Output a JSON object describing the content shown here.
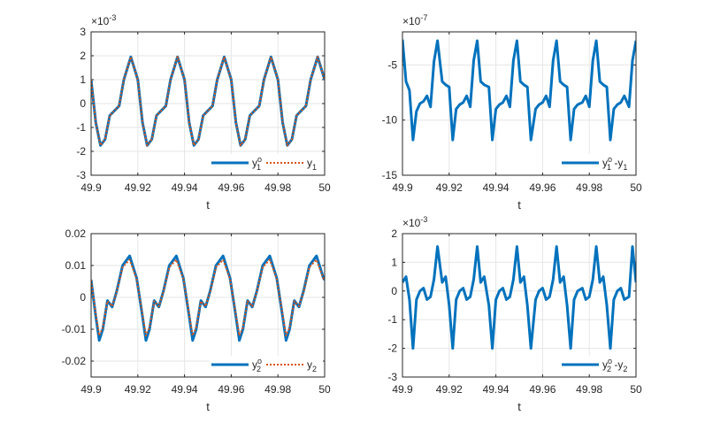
{
  "chart_data": [
    {
      "type": "line",
      "xlabel": "t",
      "exponent_label": "×10",
      "exponent_power": "-3",
      "xlim": [
        49.9,
        50
      ],
      "ylim": [
        -3,
        3
      ],
      "x_ticks": [
        "49.9",
        "49.92",
        "49.94",
        "49.96",
        "49.98",
        "50"
      ],
      "y_ticks": [
        "3",
        "2",
        "1",
        "0",
        "-1",
        "-2",
        "-3"
      ],
      "y_tick_values": [
        3,
        2,
        1,
        0,
        -1,
        -2,
        -3
      ],
      "grid": true,
      "legend_position": "bottom-right",
      "legend": [
        {
          "base": "y",
          "sup": "o",
          "sub": "1",
          "suffix": "",
          "color": "#0072BD",
          "dashed": false
        },
        {
          "base": "y",
          "sup": "",
          "sub": "1",
          "suffix": "",
          "color": "#D95319",
          "dashed": true
        }
      ],
      "series": [
        {
          "color": "#0072BD",
          "dashed": false,
          "x": [
            49.9,
            49.902,
            49.904,
            49.906,
            49.908,
            49.91,
            49.912,
            49.914,
            49.917,
            49.92,
            49.922,
            49.924,
            49.926,
            49.928,
            49.93,
            49.932,
            49.934,
            49.937,
            49.94,
            49.942,
            49.944,
            49.946,
            49.948,
            49.95,
            49.952,
            49.954,
            49.957,
            49.96,
            49.962,
            49.964,
            49.966,
            49.968,
            49.97,
            49.972,
            49.974,
            49.977,
            49.98,
            49.982,
            49.984,
            49.986,
            49.988,
            49.99,
            49.992,
            49.994,
            49.997,
            50.0
          ],
          "values": [
            1.0,
            -0.8,
            -1.75,
            -1.5,
            -0.5,
            -0.3,
            -0.1,
            1.0,
            1.95,
            1.0,
            -0.8,
            -1.75,
            -1.5,
            -0.5,
            -0.3,
            -0.1,
            1.0,
            1.95,
            1.0,
            -0.8,
            -1.75,
            -1.5,
            -0.5,
            -0.3,
            -0.1,
            1.0,
            1.95,
            1.0,
            -0.8,
            -1.75,
            -1.5,
            -0.5,
            -0.3,
            -0.1,
            1.0,
            1.95,
            1.0,
            -0.8,
            -1.75,
            -1.5,
            -0.5,
            -0.3,
            -0.1,
            1.0,
            1.95,
            1.0
          ]
        },
        {
          "color": "#D95319",
          "dashed": true,
          "x": [
            49.9,
            49.902,
            49.904,
            49.906,
            49.908,
            49.91,
            49.912,
            49.914,
            49.917,
            49.92,
            49.922,
            49.924,
            49.926,
            49.928,
            49.93,
            49.932,
            49.934,
            49.937,
            49.94,
            49.942,
            49.944,
            49.946,
            49.948,
            49.95,
            49.952,
            49.954,
            49.957,
            49.96,
            49.962,
            49.964,
            49.966,
            49.968,
            49.97,
            49.972,
            49.974,
            49.977,
            49.98,
            49.982,
            49.984,
            49.986,
            49.988,
            49.99,
            49.992,
            49.994,
            49.997,
            50.0
          ],
          "values": [
            1.0,
            -0.8,
            -1.75,
            -1.5,
            -0.5,
            -0.3,
            -0.1,
            1.0,
            1.95,
            1.0,
            -0.8,
            -1.75,
            -1.5,
            -0.5,
            -0.3,
            -0.1,
            1.0,
            1.95,
            1.0,
            -0.8,
            -1.75,
            -1.5,
            -0.5,
            -0.3,
            -0.1,
            1.0,
            1.95,
            1.0,
            -0.8,
            -1.75,
            -1.5,
            -0.5,
            -0.3,
            -0.1,
            1.0,
            1.95,
            1.0,
            -0.8,
            -1.75,
            -1.5,
            -0.5,
            -0.3,
            -0.1,
            1.0,
            1.95,
            1.0
          ]
        }
      ]
    },
    {
      "type": "line",
      "xlabel": "t",
      "exponent_label": "×10",
      "exponent_power": "-7",
      "xlim": [
        49.9,
        50
      ],
      "ylim": [
        -15,
        -2
      ],
      "x_ticks": [
        "49.9",
        "49.92",
        "49.94",
        "49.96",
        "49.98",
        "50"
      ],
      "y_ticks": [
        "-5",
        "-10",
        "-15"
      ],
      "y_tick_values": [
        -5,
        -10,
        -15
      ],
      "grid": true,
      "legend_position": "bottom-right",
      "legend": [
        {
          "base": "y",
          "sup": "o",
          "sub": "1",
          "suffix": " -y",
          "suffix_sub": "1",
          "color": "#0072BD",
          "dashed": false
        }
      ],
      "series": [
        {
          "color": "#0072BD",
          "dashed": false,
          "x": [
            49.9,
            49.9015,
            49.903,
            49.9045,
            49.906,
            49.9075,
            49.909,
            49.9105,
            49.912,
            49.9135,
            49.915,
            49.917,
            49.9185,
            49.92,
            49.9215,
            49.923,
            49.9245,
            49.926,
            49.9275,
            49.929,
            49.9305,
            49.932,
            49.9335,
            49.935,
            49.937,
            49.9385,
            49.94,
            49.9415,
            49.943,
            49.9445,
            49.946,
            49.9475,
            49.949,
            49.9505,
            49.952,
            49.9535,
            49.955,
            49.957,
            49.9585,
            49.96,
            49.9615,
            49.963,
            49.9645,
            49.966,
            49.9675,
            49.969,
            49.9705,
            49.972,
            49.9735,
            49.975,
            49.977,
            49.9785,
            49.98,
            49.9815,
            49.983,
            49.9845,
            49.986,
            49.9875,
            49.989,
            49.9905,
            49.992,
            49.9935,
            49.995,
            49.997,
            49.9985,
            50.0
          ],
          "values": [
            -2.7,
            -6.5,
            -7.3,
            -11.8,
            -9.2,
            -8.5,
            -8.3,
            -7.8,
            -8.8,
            -4.7,
            -2.8,
            -6.5,
            -6.8,
            -7.0,
            -11.8,
            -9.0,
            -8.6,
            -8.4,
            -7.8,
            -8.8,
            -4.6,
            -2.8,
            -6.5,
            -6.8,
            -7.0,
            -11.8,
            -9.0,
            -8.6,
            -8.4,
            -7.8,
            -8.8,
            -4.6,
            -2.8,
            -6.5,
            -6.8,
            -7.0,
            -11.8,
            -9.0,
            -8.6,
            -8.4,
            -7.8,
            -8.8,
            -4.6,
            -2.8,
            -6.5,
            -6.8,
            -7.0,
            -11.8,
            -9.0,
            -8.6,
            -8.4,
            -7.8,
            -8.8,
            -4.6,
            -2.8,
            -6.5,
            -6.8,
            -7.0,
            -11.8,
            -9.0,
            -8.6,
            -8.4,
            -7.8,
            -8.8,
            -4.6,
            -2.8
          ]
        }
      ]
    },
    {
      "type": "line",
      "xlabel": "t",
      "exponent_label": "",
      "exponent_power": "",
      "xlim": [
        49.9,
        50
      ],
      "ylim": [
        -0.025,
        0.02
      ],
      "x_ticks": [
        "49.9",
        "49.92",
        "49.94",
        "49.96",
        "49.98",
        "50"
      ],
      "y_ticks": [
        "0.02",
        "0.01",
        "0",
        "-0.01",
        "-0.02"
      ],
      "y_tick_values": [
        0.02,
        0.01,
        0,
        -0.01,
        -0.02
      ],
      "grid": true,
      "legend_position": "bottom-right",
      "legend": [
        {
          "base": "y",
          "sup": "o",
          "sub": "2",
          "suffix": "",
          "color": "#0072BD",
          "dashed": false
        },
        {
          "base": "y",
          "sup": "",
          "sub": "2",
          "suffix": "",
          "color": "#D95319",
          "dashed": true
        }
      ],
      "series": [
        {
          "color": "#0072BD",
          "dashed": false,
          "x": [
            49.9,
            49.902,
            49.9035,
            49.905,
            49.907,
            49.909,
            49.911,
            49.9135,
            49.9165,
            49.9195,
            49.922,
            49.9235,
            49.925,
            49.927,
            49.929,
            49.931,
            49.9335,
            49.9365,
            49.9395,
            49.942,
            49.9435,
            49.945,
            49.947,
            49.949,
            49.951,
            49.9535,
            49.9565,
            49.9595,
            49.962,
            49.9635,
            49.965,
            49.967,
            49.969,
            49.971,
            49.9735,
            49.9765,
            49.9795,
            49.982,
            49.9835,
            49.985,
            49.987,
            49.989,
            49.991,
            49.9935,
            49.9965,
            49.9995,
            50.0
          ],
          "values": [
            0.0055,
            -0.006,
            -0.0135,
            -0.01,
            -0.001,
            -0.003,
            0.002,
            0.01,
            0.013,
            0.006,
            -0.006,
            -0.0135,
            -0.01,
            -0.001,
            -0.003,
            0.002,
            0.01,
            0.013,
            0.006,
            -0.006,
            -0.0135,
            -0.01,
            -0.001,
            -0.003,
            0.002,
            0.01,
            0.013,
            0.006,
            -0.006,
            -0.0135,
            -0.01,
            -0.001,
            -0.003,
            0.002,
            0.01,
            0.013,
            0.006,
            -0.006,
            -0.0135,
            -0.01,
            -0.001,
            -0.003,
            0.002,
            0.01,
            0.013,
            0.006,
            0.0055
          ]
        },
        {
          "color": "#D95319",
          "dashed": true,
          "x": [
            49.9,
            49.902,
            49.9035,
            49.905,
            49.907,
            49.909,
            49.911,
            49.9135,
            49.9165,
            49.9195,
            49.922,
            49.9235,
            49.925,
            49.927,
            49.929,
            49.931,
            49.9335,
            49.9365,
            49.9395,
            49.942,
            49.9435,
            49.945,
            49.947,
            49.949,
            49.951,
            49.9535,
            49.9565,
            49.9595,
            49.962,
            49.9635,
            49.965,
            49.967,
            49.969,
            49.971,
            49.9735,
            49.9765,
            49.9795,
            49.982,
            49.9835,
            49.985,
            49.987,
            49.989,
            49.991,
            49.9935,
            49.9965,
            49.9995,
            50.0
          ],
          "values": [
            0.0055,
            -0.0055,
            -0.012,
            -0.0095,
            -0.0012,
            -0.0028,
            0.0018,
            0.0095,
            0.0118,
            0.0058,
            -0.0055,
            -0.012,
            -0.0095,
            -0.0012,
            -0.0028,
            0.0018,
            0.0095,
            0.0118,
            0.0058,
            -0.0055,
            -0.012,
            -0.0095,
            -0.0012,
            -0.0028,
            0.0018,
            0.0095,
            0.0118,
            0.0058,
            -0.0055,
            -0.012,
            -0.0095,
            -0.0012,
            -0.0028,
            0.0018,
            0.0095,
            0.0118,
            0.0058,
            -0.0055,
            -0.012,
            -0.0095,
            -0.0012,
            -0.0028,
            0.0018,
            0.0095,
            0.0118,
            0.0058,
            0.0055
          ]
        }
      ]
    },
    {
      "type": "line",
      "xlabel": "t",
      "exponent_label": "×10",
      "exponent_power": "-3",
      "xlim": [
        49.9,
        50
      ],
      "ylim": [
        -3,
        2
      ],
      "x_ticks": [
        "49.9",
        "49.92",
        "49.94",
        "49.96",
        "49.98",
        "50"
      ],
      "y_ticks": [
        "2",
        "1",
        "0",
        "-1",
        "-2",
        "-3"
      ],
      "y_tick_values": [
        2,
        1,
        0,
        -1,
        -2,
        -3
      ],
      "grid": true,
      "legend_position": "bottom-right",
      "legend": [
        {
          "base": "y",
          "sup": "o",
          "sub": "2",
          "suffix": " -y",
          "suffix_sub": "2",
          "color": "#0072BD",
          "dashed": false
        }
      ],
      "series": [
        {
          "color": "#0072BD",
          "dashed": false,
          "x": [
            49.9,
            49.9015,
            49.903,
            49.9045,
            49.906,
            49.9075,
            49.909,
            49.9105,
            49.912,
            49.9135,
            49.915,
            49.917,
            49.9185,
            49.92,
            49.9215,
            49.923,
            49.9245,
            49.926,
            49.9275,
            49.929,
            49.9305,
            49.932,
            49.9335,
            49.935,
            49.937,
            49.9385,
            49.94,
            49.9415,
            49.943,
            49.9445,
            49.946,
            49.9475,
            49.949,
            49.9505,
            49.952,
            49.9535,
            49.955,
            49.957,
            49.9585,
            49.96,
            49.9615,
            49.963,
            49.9645,
            49.966,
            49.9675,
            49.969,
            49.9705,
            49.972,
            49.9735,
            49.975,
            49.977,
            49.9785,
            49.98,
            49.9815,
            49.983,
            49.9845,
            49.986,
            49.9875,
            49.989,
            49.9905,
            49.992,
            49.9935,
            49.995,
            49.997,
            49.9985,
            50.0
          ],
          "values": [
            0.3,
            0.5,
            -0.3,
            -2.0,
            -0.3,
            0.0,
            0.1,
            -0.3,
            -0.2,
            0.4,
            1.55,
            0.3,
            0.5,
            -0.5,
            -2.0,
            -0.3,
            0.0,
            0.1,
            -0.3,
            -0.2,
            0.4,
            1.55,
            0.3,
            0.5,
            -0.5,
            -2.0,
            -0.3,
            0.0,
            0.1,
            -0.3,
            -0.2,
            0.4,
            1.55,
            0.3,
            0.5,
            -0.5,
            -2.0,
            -0.3,
            0.0,
            0.1,
            -0.3,
            -0.2,
            0.4,
            1.55,
            0.3,
            0.5,
            -0.5,
            -2.0,
            -0.3,
            0.0,
            0.1,
            -0.3,
            -0.2,
            0.4,
            1.55,
            0.3,
            0.5,
            -0.5,
            -2.0,
            -0.3,
            0.0,
            0.1,
            -0.3,
            -0.2,
            1.55,
            0.3
          ]
        }
      ]
    }
  ]
}
